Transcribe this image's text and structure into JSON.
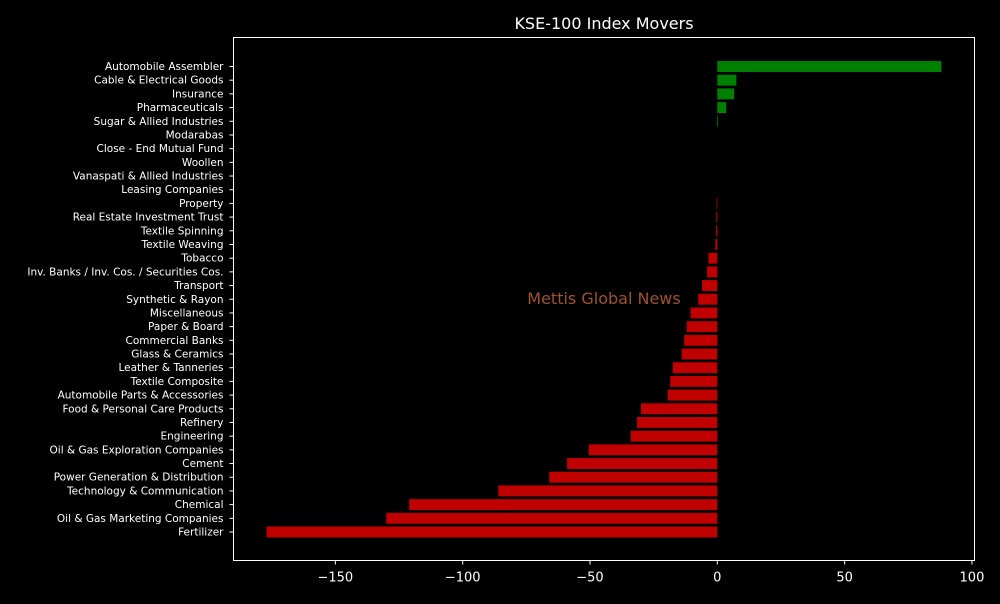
{
  "chart_data": {
    "type": "bar",
    "orientation": "horizontal",
    "title": "KSE-100 Index Movers",
    "xlabel": "",
    "ylabel": "",
    "xlim": [
      -190,
      101
    ],
    "xticks": [
      -150,
      -100,
      -50,
      0,
      50,
      100
    ],
    "xtick_labels": [
      "−150",
      "−100",
      "−50",
      "0",
      "50",
      "100"
    ],
    "grid": false,
    "categories": [
      "Automobile Assembler",
      "Cable & Electrical Goods",
      "Insurance",
      "Pharmaceuticals",
      "Sugar & Allied Industries",
      "Modarabas",
      "Close - End Mutual Fund",
      "Woollen",
      "Vanaspati & Allied Industries",
      "Leasing Companies",
      "Property",
      "Real Estate Investment Trust",
      "Textile Spinning",
      "Textile Weaving",
      "Tobacco",
      "Inv. Banks / Inv. Cos. / Securities Cos.",
      "Transport",
      "Synthetic & Rayon",
      "Miscellaneous",
      "Paper & Board",
      "Commercial Banks",
      "Glass & Ceramics",
      "Leather & Tanneries",
      "Textile Composite",
      "Automobile Parts & Accessories",
      "Food & Personal Care Products",
      "Refinery",
      "Engineering",
      "Oil & Gas Exploration Companies",
      "Cement",
      "Power Generation & Distribution",
      "Technology & Communication",
      "Chemical",
      "Oil & Gas Marketing Companies",
      "Fertilizer"
    ],
    "values": [
      88.0,
      7.5,
      6.6,
      3.5,
      0.3,
      0.0,
      0.0,
      0.0,
      0.0,
      0.0,
      -0.3,
      -0.4,
      -0.5,
      -0.8,
      -3.5,
      -4.0,
      -6.0,
      -7.5,
      -10.5,
      -12.0,
      -13.0,
      -14.0,
      -17.5,
      -18.5,
      -19.5,
      -30.0,
      -31.5,
      -34.0,
      -50.5,
      -59.0,
      -66.0,
      -86.0,
      -121.0,
      -130.0,
      -177.0
    ],
    "colors": {
      "positive": "#008000",
      "negative": "#c00000"
    },
    "watermark": "Mettis Global News"
  },
  "style": {
    "background": "#000000",
    "foreground": "#ffffff",
    "watermark_color": "#a0522d"
  }
}
